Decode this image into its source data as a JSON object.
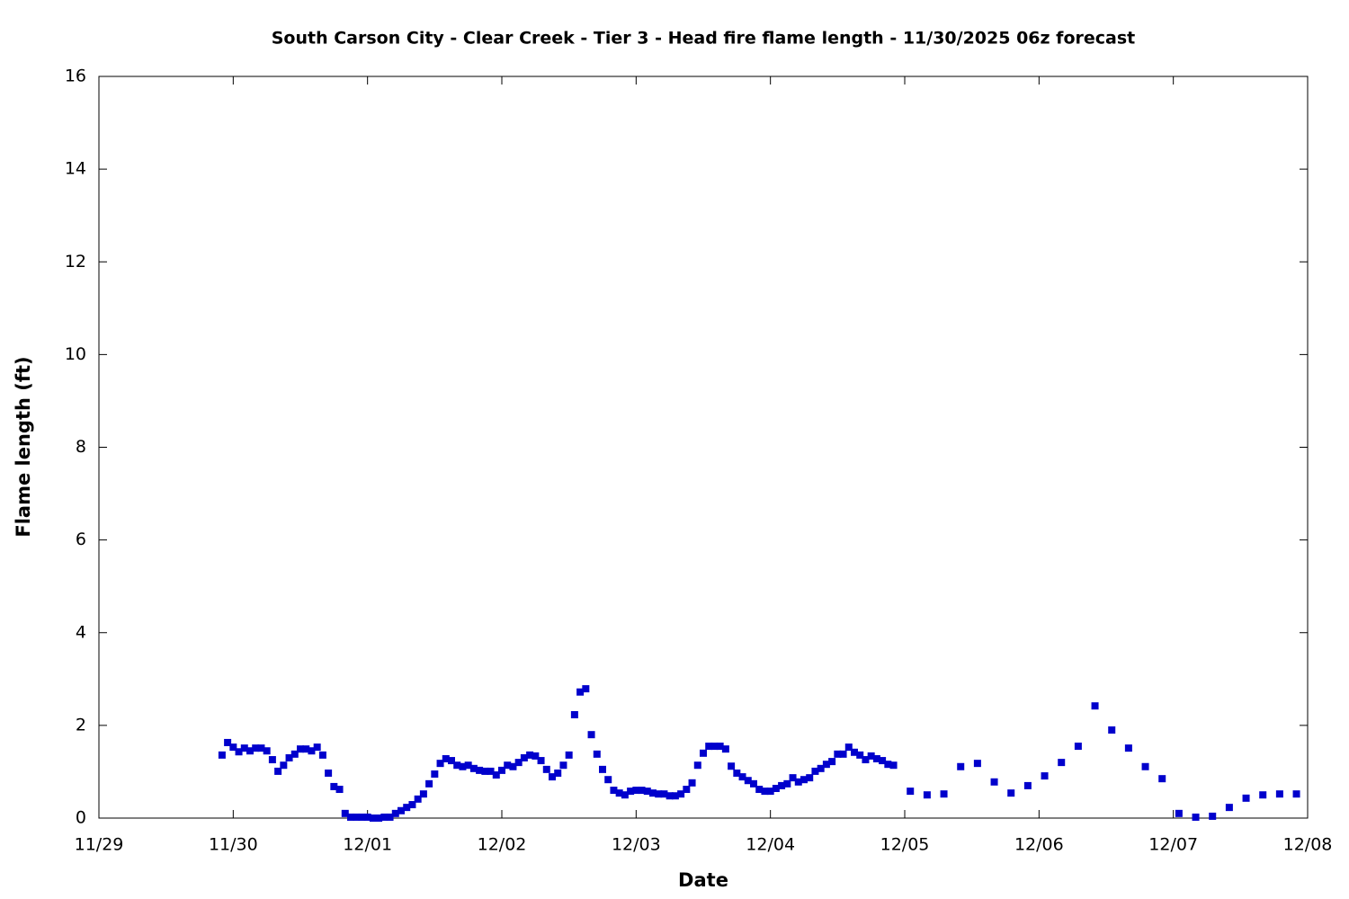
{
  "chart_data": {
    "type": "scatter",
    "title": "South Carson City - Clear Creek - Tier 3 - Head fire flame length - 11/30/2025 06z forecast",
    "xlabel": "Date",
    "ylabel": "Flame length (ft)",
    "color": "#0000cc",
    "x": [
      22,
      23,
      24,
      25,
      26,
      27,
      28,
      29,
      30,
      31,
      32,
      33,
      34,
      35,
      36,
      37,
      38,
      39,
      40,
      41,
      42,
      43,
      44,
      45,
      46,
      47,
      48,
      49,
      50,
      51,
      52,
      53,
      54,
      55,
      56,
      57,
      58,
      59,
      60,
      61,
      62,
      63,
      64,
      65,
      66,
      67,
      68,
      69,
      70,
      71,
      72,
      73,
      74,
      75,
      76,
      77,
      78,
      79,
      80,
      81,
      82,
      83,
      84,
      85,
      86,
      87,
      88,
      89,
      90,
      91,
      92,
      93,
      94,
      95,
      96,
      97,
      98,
      99,
      100,
      101,
      102,
      103,
      104,
      105,
      106,
      107,
      108,
      109,
      110,
      111,
      112,
      113,
      114,
      115,
      116,
      117,
      118,
      119,
      120,
      121,
      122,
      123,
      124,
      125,
      126,
      127,
      128,
      129,
      130,
      131,
      132,
      133,
      134,
      135,
      136,
      137,
      138,
      139,
      140,
      141,
      142,
      145,
      148,
      151,
      154,
      157,
      160,
      163,
      166,
      169,
      172,
      175,
      178,
      181,
      184,
      187,
      190,
      193,
      196,
      199,
      202,
      205,
      208,
      211,
      214
    ],
    "values": [
      1.36,
      1.63,
      1.53,
      1.43,
      1.51,
      1.45,
      1.51,
      1.51,
      1.45,
      1.26,
      1.01,
      1.14,
      1.3,
      1.38,
      1.49,
      1.49,
      1.45,
      1.53,
      1.36,
      0.97,
      0.68,
      0.62,
      0.1,
      0.02,
      0.02,
      0.02,
      0.02,
      0.0,
      0.0,
      0.02,
      0.02,
      0.1,
      0.16,
      0.23,
      0.29,
      0.41,
      0.52,
      0.74,
      0.95,
      1.18,
      1.28,
      1.24,
      1.14,
      1.11,
      1.14,
      1.07,
      1.03,
      1.01,
      1.01,
      0.93,
      1.03,
      1.14,
      1.11,
      1.2,
      1.3,
      1.36,
      1.34,
      1.24,
      1.05,
      0.89,
      0.97,
      1.14,
      1.36,
      2.23,
      2.72,
      2.79,
      1.8,
      1.38,
      1.05,
      0.83,
      0.6,
      0.54,
      0.5,
      0.58,
      0.6,
      0.6,
      0.58,
      0.54,
      0.52,
      0.52,
      0.48,
      0.48,
      0.52,
      0.62,
      0.76,
      1.14,
      1.4,
      1.55,
      1.55,
      1.55,
      1.49,
      1.12,
      0.97,
      0.89,
      0.81,
      0.74,
      0.62,
      0.58,
      0.58,
      0.64,
      0.7,
      0.74,
      0.87,
      0.78,
      0.83,
      0.87,
      1.01,
      1.07,
      1.16,
      1.22,
      1.38,
      1.38,
      1.53,
      1.42,
      1.36,
      1.26,
      1.34,
      1.28,
      1.24,
      1.16,
      1.14,
      0.58,
      0.5,
      0.52,
      1.11,
      1.18,
      0.78,
      0.54,
      0.7,
      0.91,
      1.2,
      1.55,
      2.42,
      1.9,
      1.51,
      1.11,
      0.85,
      0.1,
      0.02,
      0.04,
      0.23,
      0.43,
      0.5,
      0.52,
      0.52
    ],
    "xlim": [
      0,
      216
    ],
    "xticks": [
      {
        "value": 0,
        "label": "11/29"
      },
      {
        "value": 24,
        "label": "11/30"
      },
      {
        "value": 48,
        "label": "12/01"
      },
      {
        "value": 72,
        "label": "12/02"
      },
      {
        "value": 96,
        "label": "12/03"
      },
      {
        "value": 120,
        "label": "12/04"
      },
      {
        "value": 144,
        "label": "12/05"
      },
      {
        "value": 168,
        "label": "12/06"
      },
      {
        "value": 192,
        "label": "12/07"
      },
      {
        "value": 216,
        "label": "12/08"
      }
    ],
    "ylim": [
      0,
      16
    ],
    "yticks": [
      0,
      2,
      4,
      6,
      8,
      10,
      12,
      14,
      16
    ]
  }
}
